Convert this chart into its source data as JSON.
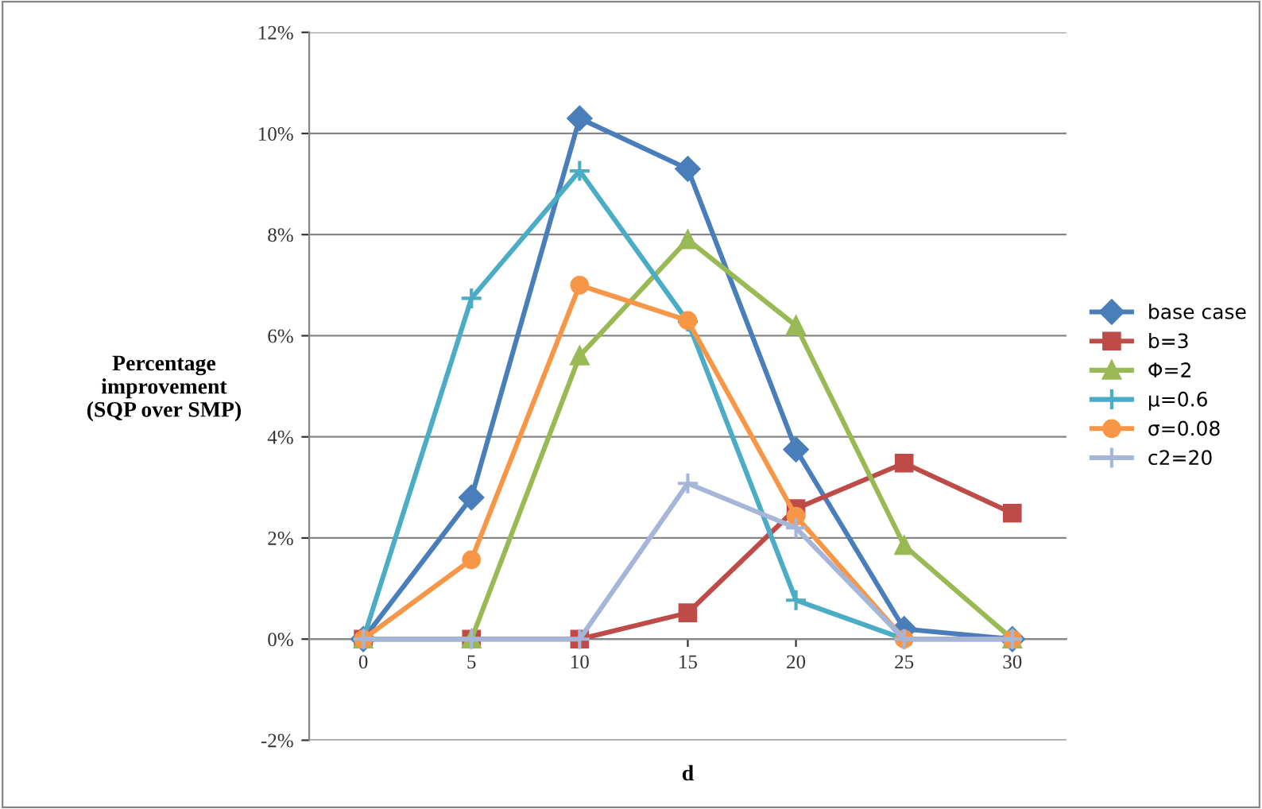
{
  "chart_data": {
    "type": "line",
    "xlabel": "d",
    "ylabel": "Percentage\nimprovement\n(SQP over SMP)",
    "categories": [
      "0",
      "5",
      "10",
      "15",
      "20",
      "25",
      "30"
    ],
    "series": [
      {
        "name": "base case",
        "color": "#4a7ebb",
        "marker": "diamond",
        "values": [
          0,
          2.8,
          10.3,
          9.3,
          3.75,
          0.2,
          0
        ]
      },
      {
        "name": "b=3",
        "color": "#be4b48",
        "marker": "square",
        "values": [
          0,
          0,
          0,
          0.52,
          2.58,
          3.48,
          2.49
        ]
      },
      {
        "name": "Φ=2",
        "color": "#98b954",
        "marker": "triangle",
        "values": [
          0,
          0,
          5.6,
          7.9,
          6.2,
          1.85,
          0
        ]
      },
      {
        "name": "μ=0.6",
        "color": "#4bacc6",
        "marker": "cross",
        "values": [
          0,
          6.74,
          9.26,
          6.28,
          0.77,
          0,
          0
        ]
      },
      {
        "name": "σ=0.08",
        "color": "#f79646",
        "marker": "circle",
        "values": [
          0,
          1.57,
          7.0,
          6.3,
          2.43,
          0,
          0
        ]
      },
      {
        "name": "c2=20",
        "color": "#a5b6d9",
        "marker": "cross",
        "values": [
          0,
          0,
          0,
          3.08,
          2.2,
          0,
          0
        ]
      }
    ],
    "ylim": [
      -2,
      12
    ],
    "yticks": [
      {
        "value": -2,
        "label": "-2%"
      },
      {
        "value": 0,
        "label": "0%"
      },
      {
        "value": 2,
        "label": "2%"
      },
      {
        "value": 4,
        "label": "4%"
      },
      {
        "value": 6,
        "label": "6%"
      },
      {
        "value": 8,
        "label": "8%"
      },
      {
        "value": 10,
        "label": "10%"
      },
      {
        "value": 12,
        "label": "12%"
      }
    ],
    "grid": "y",
    "legend": "right",
    "line_style": "solid"
  }
}
